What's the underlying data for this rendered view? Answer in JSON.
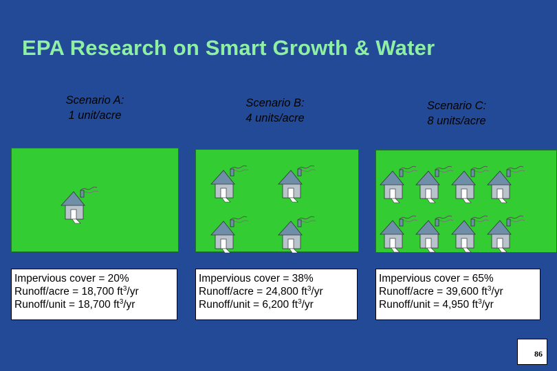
{
  "title": "EPA Research on Smart Growth & Water",
  "scenarios": [
    {
      "name": "Scenario A:",
      "density": "1 unit/acre",
      "impervious": "Impervious cover = 20%",
      "runoff_acre_value": "Runoff/acre = 18,700 ft",
      "runoff_unit_value": "Runoff/unit = 18,700 ft",
      "houses": 1
    },
    {
      "name": "Scenario B:",
      "density": "4 units/acre",
      "impervious": "Impervious cover = 38%",
      "runoff_acre_value": "Runoff/acre = 24,800 ft",
      "runoff_unit_value": "Runoff/unit = 6,200 ft",
      "houses": 4
    },
    {
      "name": "Scenario C:",
      "density": "8 units/acre",
      "impervious": "Impervious cover = 65%",
      "runoff_acre_value": "Runoff/acre = 39,600 ft",
      "runoff_unit_value": "Runoff/unit = 4,950 ft",
      "houses": 8
    }
  ],
  "unit_exponent": "3",
  "unit_suffix": "/yr",
  "page_number": "86",
  "colors": {
    "background": "#234a96",
    "title": "#8ff0a4",
    "lot": "#33cc33",
    "house_roof": "#6f8fa8",
    "house_wall": "#b9c3cc"
  },
  "icons": [
    "house-icon"
  ]
}
